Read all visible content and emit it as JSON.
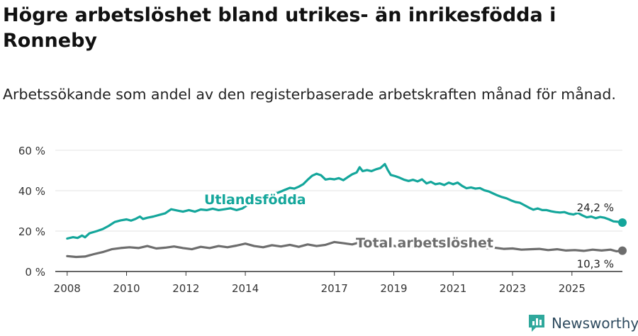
{
  "title": "Högre arbetslöshet bland utrikes- än inrikesfödda i Ronneby",
  "subtitle": "Arbetssökande som andel av den registerbaserade arbetskraften månad för månad.",
  "brand": {
    "name": "Newsworthy",
    "icon": "newsworthy-logo-icon"
  },
  "colors": {
    "foreign_born": "#14a69b",
    "total": "#6d6d6d",
    "grid": "#e3e3e3",
    "axis": "#333333"
  },
  "chart_data": {
    "type": "line",
    "title": "Högre arbetslöshet bland utrikes- än inrikesfödda i Ronneby",
    "subtitle": "Arbetssökande som andel av den registerbaserade arbetskraften månad för månad.",
    "xlabel": "",
    "ylabel": "",
    "ylim": [
      0,
      60
    ],
    "xlim": [
      2007.6,
      2026.7
    ],
    "y_ticks": [
      0,
      20,
      40,
      60
    ],
    "y_tick_labels": [
      "0 %",
      "20 %",
      "40 %",
      "60 %"
    ],
    "x_ticks": [
      2008,
      2010,
      2012,
      2014,
      2017,
      2019,
      2021,
      2023,
      2025
    ],
    "x_tick_labels": [
      "2008",
      "2010",
      "2012",
      "2014",
      "2017",
      "2019",
      "2021",
      "2023",
      "2025"
    ],
    "grid": true,
    "series": [
      {
        "name": "Utlandsfödda",
        "label": "Utlandsfödda",
        "color": "#14a69b",
        "end_label": "24,2 %",
        "end_value": 24.2,
        "points": [
          [
            2008.0,
            16.3
          ],
          [
            2008.2,
            17.0
          ],
          [
            2008.35,
            16.6
          ],
          [
            2008.5,
            17.8
          ],
          [
            2008.6,
            16.9
          ],
          [
            2008.75,
            18.9
          ],
          [
            2009.0,
            20.0
          ],
          [
            2009.2,
            21.0
          ],
          [
            2009.4,
            22.6
          ],
          [
            2009.6,
            24.5
          ],
          [
            2009.8,
            25.3
          ],
          [
            2010.0,
            25.8
          ],
          [
            2010.15,
            25.2
          ],
          [
            2010.3,
            26.0
          ],
          [
            2010.45,
            27.2
          ],
          [
            2010.55,
            26.0
          ],
          [
            2010.7,
            26.6
          ],
          [
            2010.9,
            27.2
          ],
          [
            2011.1,
            28.0
          ],
          [
            2011.3,
            28.8
          ],
          [
            2011.5,
            30.8
          ],
          [
            2011.7,
            30.2
          ],
          [
            2011.9,
            29.6
          ],
          [
            2012.1,
            30.4
          ],
          [
            2012.3,
            29.6
          ],
          [
            2012.5,
            30.7
          ],
          [
            2012.7,
            30.4
          ],
          [
            2012.9,
            31.1
          ],
          [
            2013.1,
            30.4
          ],
          [
            2013.3,
            30.8
          ],
          [
            2013.5,
            31.3
          ],
          [
            2013.7,
            30.4
          ],
          [
            2013.9,
            31.2
          ],
          [
            2014.1,
            33.2
          ],
          [
            2014.3,
            35.0
          ],
          [
            2014.5,
            35.6
          ],
          [
            2014.7,
            36.8
          ],
          [
            2014.9,
            38.6
          ],
          [
            2015.1,
            39.0
          ],
          [
            2015.3,
            40.2
          ],
          [
            2015.5,
            41.4
          ],
          [
            2015.65,
            41.0
          ],
          [
            2015.8,
            42.0
          ],
          [
            2015.95,
            43.2
          ],
          [
            2016.1,
            45.4
          ],
          [
            2016.25,
            47.4
          ],
          [
            2016.4,
            48.4
          ],
          [
            2016.55,
            47.6
          ],
          [
            2016.7,
            45.5
          ],
          [
            2016.85,
            45.9
          ],
          [
            2017.0,
            45.6
          ],
          [
            2017.15,
            46.2
          ],
          [
            2017.3,
            45.2
          ],
          [
            2017.45,
            46.7
          ],
          [
            2017.6,
            48.1
          ],
          [
            2017.75,
            49.0
          ],
          [
            2017.85,
            51.6
          ],
          [
            2017.95,
            49.7
          ],
          [
            2018.1,
            50.2
          ],
          [
            2018.25,
            49.7
          ],
          [
            2018.4,
            50.6
          ],
          [
            2018.55,
            51.2
          ],
          [
            2018.7,
            53.2
          ],
          [
            2018.8,
            50.2
          ],
          [
            2018.9,
            47.8
          ],
          [
            2019.05,
            47.2
          ],
          [
            2019.2,
            46.4
          ],
          [
            2019.35,
            45.4
          ],
          [
            2019.5,
            44.8
          ],
          [
            2019.65,
            45.4
          ],
          [
            2019.8,
            44.6
          ],
          [
            2019.95,
            45.6
          ],
          [
            2020.1,
            43.6
          ],
          [
            2020.25,
            44.4
          ],
          [
            2020.4,
            43.2
          ],
          [
            2020.55,
            43.6
          ],
          [
            2020.7,
            42.8
          ],
          [
            2020.85,
            44.0
          ],
          [
            2021.0,
            43.2
          ],
          [
            2021.15,
            44.0
          ],
          [
            2021.3,
            42.4
          ],
          [
            2021.45,
            41.2
          ],
          [
            2021.6,
            41.6
          ],
          [
            2021.75,
            41.0
          ],
          [
            2021.9,
            41.3
          ],
          [
            2022.05,
            40.2
          ],
          [
            2022.2,
            39.6
          ],
          [
            2022.35,
            38.6
          ],
          [
            2022.5,
            37.6
          ],
          [
            2022.65,
            36.8
          ],
          [
            2022.8,
            36.2
          ],
          [
            2022.95,
            35.2
          ],
          [
            2023.1,
            34.4
          ],
          [
            2023.25,
            34.0
          ],
          [
            2023.4,
            32.8
          ],
          [
            2023.55,
            31.6
          ],
          [
            2023.7,
            30.6
          ],
          [
            2023.85,
            31.2
          ],
          [
            2024.0,
            30.4
          ],
          [
            2024.15,
            30.4
          ],
          [
            2024.3,
            29.8
          ],
          [
            2024.45,
            29.4
          ],
          [
            2024.6,
            29.2
          ],
          [
            2024.75,
            29.4
          ],
          [
            2024.9,
            28.6
          ],
          [
            2025.05,
            28.2
          ],
          [
            2025.2,
            29.0
          ],
          [
            2025.35,
            27.8
          ],
          [
            2025.5,
            26.8
          ],
          [
            2025.65,
            27.2
          ],
          [
            2025.8,
            26.4
          ],
          [
            2025.95,
            27.0
          ],
          [
            2026.1,
            26.6
          ],
          [
            2026.25,
            25.8
          ],
          [
            2026.4,
            24.8
          ],
          [
            2026.55,
            24.6
          ],
          [
            2026.7,
            24.2
          ]
        ]
      },
      {
        "name": "Total arbetslöshet",
        "label": "Total arbetslöshet",
        "color": "#6d6d6d",
        "end_label": "10,3 %",
        "end_value": 10.3,
        "points": [
          [
            2008.0,
            7.6
          ],
          [
            2008.3,
            7.2
          ],
          [
            2008.6,
            7.4
          ],
          [
            2008.9,
            8.6
          ],
          [
            2009.2,
            9.6
          ],
          [
            2009.5,
            11.0
          ],
          [
            2009.8,
            11.6
          ],
          [
            2010.1,
            12.0
          ],
          [
            2010.4,
            11.6
          ],
          [
            2010.7,
            12.6
          ],
          [
            2011.0,
            11.4
          ],
          [
            2011.3,
            11.8
          ],
          [
            2011.6,
            12.4
          ],
          [
            2011.9,
            11.6
          ],
          [
            2012.2,
            11.0
          ],
          [
            2012.5,
            12.2
          ],
          [
            2012.8,
            11.6
          ],
          [
            2013.1,
            12.6
          ],
          [
            2013.4,
            12.0
          ],
          [
            2013.7,
            12.8
          ],
          [
            2014.0,
            13.8
          ],
          [
            2014.3,
            12.6
          ],
          [
            2014.6,
            12.0
          ],
          [
            2014.9,
            13.0
          ],
          [
            2015.2,
            12.4
          ],
          [
            2015.5,
            13.2
          ],
          [
            2015.8,
            12.2
          ],
          [
            2016.1,
            13.4
          ],
          [
            2016.4,
            12.6
          ],
          [
            2016.7,
            13.2
          ],
          [
            2017.0,
            14.6
          ],
          [
            2017.3,
            14.0
          ],
          [
            2017.6,
            13.4
          ],
          [
            2017.9,
            14.6
          ],
          [
            2018.2,
            13.6
          ],
          [
            2018.5,
            13.0
          ],
          [
            2018.8,
            13.4
          ],
          [
            2019.1,
            12.4
          ],
          [
            2019.4,
            12.8
          ],
          [
            2019.7,
            12.0
          ],
          [
            2020.0,
            13.0
          ],
          [
            2020.3,
            13.4
          ],
          [
            2020.6,
            12.8
          ],
          [
            2020.9,
            12.2
          ],
          [
            2021.2,
            12.6
          ],
          [
            2021.5,
            11.8
          ],
          [
            2021.8,
            12.2
          ],
          [
            2022.1,
            11.6
          ],
          [
            2022.4,
            11.8
          ],
          [
            2022.7,
            11.2
          ],
          [
            2023.0,
            11.4
          ],
          [
            2023.3,
            10.8
          ],
          [
            2023.6,
            11.0
          ],
          [
            2023.9,
            11.2
          ],
          [
            2024.2,
            10.6
          ],
          [
            2024.5,
            11.0
          ],
          [
            2024.8,
            10.4
          ],
          [
            2025.1,
            10.6
          ],
          [
            2025.4,
            10.2
          ],
          [
            2025.7,
            10.8
          ],
          [
            2026.0,
            10.4
          ],
          [
            2026.3,
            10.8
          ],
          [
            2026.5,
            10.0
          ],
          [
            2026.7,
            10.3
          ]
        ]
      }
    ]
  }
}
